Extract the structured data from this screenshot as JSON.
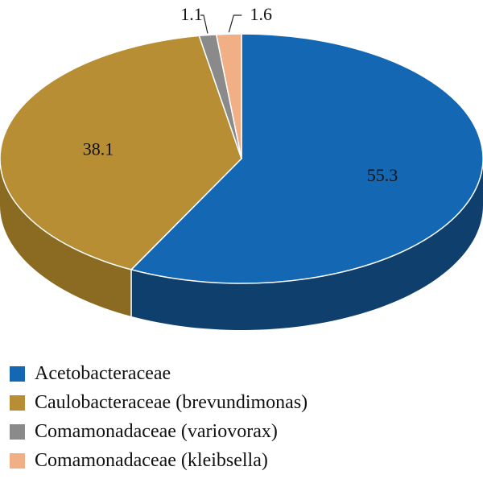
{
  "chart_data": {
    "type": "pie",
    "title": "",
    "labels": [
      "Acetobacteraceae",
      "Caulobacteraceae (brevundimonas)",
      "Comamonadaceae (variovorax)",
      "Comamonadaceae (kleibsella)"
    ],
    "values": [
      55.3,
      38.1,
      1.1,
      1.6
    ],
    "value_labels": [
      "55.3",
      "38.1",
      "1.1",
      "1.6"
    ],
    "colors": [
      "#1467B3",
      "#B78E33",
      "#8A8A8A",
      "#F1AF86"
    ],
    "side_colors": [
      "#0E3F6D",
      "#8B6B22",
      "#5E5E5E",
      "#C98C66"
    ],
    "style": "3d",
    "legend_position": "bottom-left"
  }
}
